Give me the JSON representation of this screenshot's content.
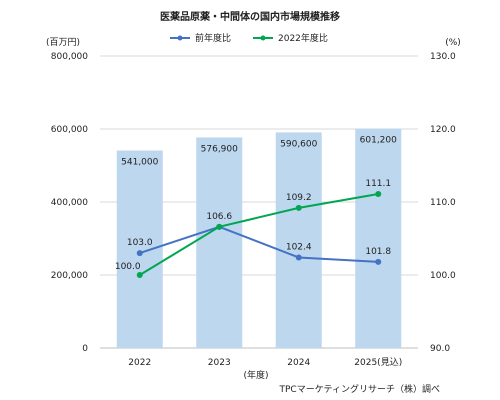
{
  "chart_data": {
    "type": "bar+line",
    "title": "医薬品原薬・中間体の国内市場規模推移",
    "categories": [
      "2022",
      "2023",
      "2024",
      "2025(見込)"
    ],
    "xlabel": "(年度)",
    "bars": {
      "values": [
        541000,
        576900,
        590600,
        601200
      ],
      "labels": [
        "541,000",
        "576,900",
        "590,600",
        "601,200"
      ],
      "color": "#bdd7ee"
    },
    "y_left": {
      "unit": "(百万円)",
      "range": [
        0,
        800000
      ],
      "ticks": [
        0,
        200000,
        400000,
        600000,
        800000
      ],
      "tick_labels": [
        "0",
        "200,000",
        "400,000",
        "600,000",
        "800,000"
      ]
    },
    "y_right": {
      "unit": "(%)",
      "range": [
        90,
        130
      ],
      "ticks": [
        90,
        100,
        110,
        120,
        130
      ],
      "tick_labels": [
        "90.0",
        "100.0",
        "110.0",
        "120.0",
        "130.0"
      ]
    },
    "lines": [
      {
        "name": "前年度比",
        "color": "#4472c4",
        "values": [
          103.0,
          106.6,
          102.4,
          101.8
        ],
        "labels": [
          "103.0",
          "106.6",
          "102.4",
          "101.8"
        ]
      },
      {
        "name": "2022年度比",
        "color": "#00a651",
        "values": [
          100.0,
          106.6,
          109.2,
          111.1
        ],
        "labels": [
          "100.0",
          "",
          "109.2",
          "111.1"
        ]
      }
    ],
    "grid": true,
    "legend": "top-center"
  },
  "source": "TPCマーケティングリサーチ（株）調べ"
}
